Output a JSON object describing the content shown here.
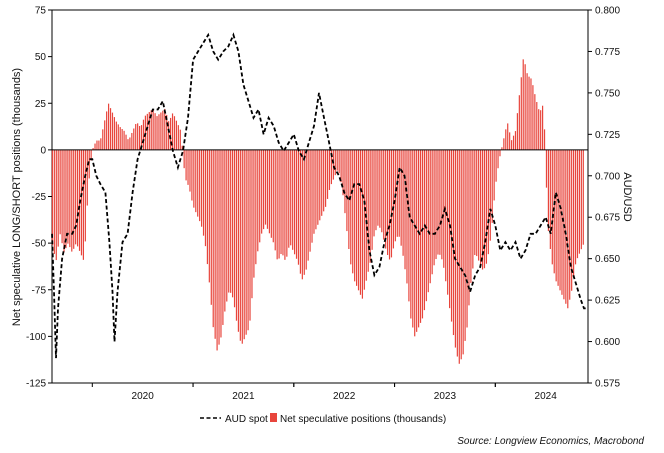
{
  "chart_data": {
    "type": "bar",
    "x_ticks": [
      "2020",
      "2021",
      "2022",
      "2023",
      "2024"
    ],
    "y_left": {
      "label": "Net speculative LONG/SHORT positions (thousands)",
      "range": [
        -125,
        75
      ],
      "ticks": [
        75,
        50,
        25,
        0,
        -25,
        -50,
        -75,
        -100,
        -125
      ]
    },
    "y_right": {
      "label": "AUD/USD",
      "range": [
        0.575,
        0.8
      ],
      "ticks": [
        "0.800",
        "0.775",
        "0.750",
        "0.725",
        "0.700",
        "0.675",
        "0.650",
        "0.625",
        "0.600",
        "0.575"
      ]
    },
    "x_range": [
      2019.6,
      2024.92
    ],
    "grid": false,
    "legend_position": "bottom",
    "source": "Source: Longview Economics, Macrobond",
    "series": [
      {
        "name": "AUD spot",
        "axis": "right",
        "style": "dashed-line",
        "color": "#111111",
        "points": [
          [
            2019.6,
            0.665
          ],
          [
            2019.62,
            0.63
          ],
          [
            2019.64,
            0.59
          ],
          [
            2019.66,
            0.62
          ],
          [
            2019.7,
            0.65
          ],
          [
            2019.75,
            0.665
          ],
          [
            2019.8,
            0.665
          ],
          [
            2019.84,
            0.67
          ],
          [
            2019.88,
            0.685
          ],
          [
            2019.93,
            0.7
          ],
          [
            2019.97,
            0.71
          ],
          [
            2020.0,
            0.71
          ],
          [
            2020.04,
            0.7
          ],
          [
            2020.08,
            0.695
          ],
          [
            2020.13,
            0.69
          ],
          [
            2020.17,
            0.66
          ],
          [
            2020.2,
            0.63
          ],
          [
            2020.22,
            0.6
          ],
          [
            2020.25,
            0.63
          ],
          [
            2020.3,
            0.66
          ],
          [
            2020.35,
            0.665
          ],
          [
            2020.4,
            0.69
          ],
          [
            2020.45,
            0.71
          ],
          [
            2020.5,
            0.72
          ],
          [
            2020.55,
            0.73
          ],
          [
            2020.6,
            0.74
          ],
          [
            2020.65,
            0.74
          ],
          [
            2020.7,
            0.745
          ],
          [
            2020.75,
            0.73
          ],
          [
            2020.8,
            0.715
          ],
          [
            2020.85,
            0.705
          ],
          [
            2020.9,
            0.715
          ],
          [
            2020.95,
            0.735
          ],
          [
            2021.0,
            0.77
          ],
          [
            2021.05,
            0.775
          ],
          [
            2021.1,
            0.78
          ],
          [
            2021.15,
            0.785
          ],
          [
            2021.2,
            0.775
          ],
          [
            2021.25,
            0.77
          ],
          [
            2021.3,
            0.775
          ],
          [
            2021.35,
            0.778
          ],
          [
            2021.4,
            0.785
          ],
          [
            2021.45,
            0.775
          ],
          [
            2021.5,
            0.755
          ],
          [
            2021.55,
            0.745
          ],
          [
            2021.6,
            0.735
          ],
          [
            2021.65,
            0.74
          ],
          [
            2021.7,
            0.725
          ],
          [
            2021.75,
            0.735
          ],
          [
            2021.8,
            0.73
          ],
          [
            2021.85,
            0.72
          ],
          [
            2021.9,
            0.715
          ],
          [
            2021.95,
            0.72
          ],
          [
            2022.0,
            0.725
          ],
          [
            2022.05,
            0.715
          ],
          [
            2022.1,
            0.71
          ],
          [
            2022.15,
            0.72
          ],
          [
            2022.2,
            0.73
          ],
          [
            2022.25,
            0.75
          ],
          [
            2022.3,
            0.735
          ],
          [
            2022.35,
            0.72
          ],
          [
            2022.4,
            0.705
          ],
          [
            2022.45,
            0.7
          ],
          [
            2022.5,
            0.69
          ],
          [
            2022.55,
            0.685
          ],
          [
            2022.6,
            0.695
          ],
          [
            2022.65,
            0.695
          ],
          [
            2022.7,
            0.685
          ],
          [
            2022.75,
            0.655
          ],
          [
            2022.8,
            0.64
          ],
          [
            2022.85,
            0.645
          ],
          [
            2022.9,
            0.66
          ],
          [
            2022.95,
            0.67
          ],
          [
            2023.0,
            0.685
          ],
          [
            2023.05,
            0.705
          ],
          [
            2023.1,
            0.7
          ],
          [
            2023.15,
            0.675
          ],
          [
            2023.2,
            0.67
          ],
          [
            2023.25,
            0.665
          ],
          [
            2023.3,
            0.67
          ],
          [
            2023.35,
            0.665
          ],
          [
            2023.4,
            0.665
          ],
          [
            2023.45,
            0.67
          ],
          [
            2023.5,
            0.68
          ],
          [
            2023.55,
            0.67
          ],
          [
            2023.6,
            0.65
          ],
          [
            2023.65,
            0.645
          ],
          [
            2023.7,
            0.64
          ],
          [
            2023.75,
            0.63
          ],
          [
            2023.8,
            0.64
          ],
          [
            2023.85,
            0.645
          ],
          [
            2023.9,
            0.66
          ],
          [
            2023.95,
            0.68
          ],
          [
            2024.0,
            0.67
          ],
          [
            2024.05,
            0.655
          ],
          [
            2024.1,
            0.66
          ],
          [
            2024.15,
            0.655
          ],
          [
            2024.2,
            0.66
          ],
          [
            2024.25,
            0.65
          ],
          [
            2024.3,
            0.655
          ],
          [
            2024.35,
            0.665
          ],
          [
            2024.4,
            0.665
          ],
          [
            2024.45,
            0.67
          ],
          [
            2024.5,
            0.675
          ],
          [
            2024.55,
            0.665
          ],
          [
            2024.6,
            0.69
          ],
          [
            2024.65,
            0.68
          ],
          [
            2024.7,
            0.665
          ],
          [
            2024.75,
            0.645
          ],
          [
            2024.8,
            0.635
          ],
          [
            2024.85,
            0.625
          ],
          [
            2024.88,
            0.62
          ],
          [
            2024.92,
            0.62
          ]
        ]
      },
      {
        "name": "Net speculative positions (thousands)",
        "axis": "left",
        "style": "bars",
        "color": "#e8453c",
        "points": [
          [
            2019.6,
            -50
          ],
          [
            2019.64,
            -60
          ],
          [
            2019.68,
            -45
          ],
          [
            2019.72,
            -55
          ],
          [
            2019.76,
            -50
          ],
          [
            2019.8,
            -55
          ],
          [
            2019.84,
            -50
          ],
          [
            2019.88,
            -55
          ],
          [
            2019.92,
            -60
          ],
          [
            2019.96,
            -20
          ],
          [
            2020.0,
            0
          ],
          [
            2020.04,
            5
          ],
          [
            2020.08,
            5
          ],
          [
            2020.12,
            15
          ],
          [
            2020.16,
            25
          ],
          [
            2020.2,
            20
          ],
          [
            2020.24,
            15
          ],
          [
            2020.28,
            12
          ],
          [
            2020.32,
            10
          ],
          [
            2020.36,
            5
          ],
          [
            2020.4,
            10
          ],
          [
            2020.44,
            15
          ],
          [
            2020.48,
            12
          ],
          [
            2020.52,
            18
          ],
          [
            2020.56,
            20
          ],
          [
            2020.6,
            22
          ],
          [
            2020.64,
            18
          ],
          [
            2020.68,
            20
          ],
          [
            2020.72,
            22
          ],
          [
            2020.76,
            15
          ],
          [
            2020.8,
            20
          ],
          [
            2020.84,
            15
          ],
          [
            2020.88,
            10
          ],
          [
            2020.92,
            -15
          ],
          [
            2020.96,
            -20
          ],
          [
            2021.0,
            -30
          ],
          [
            2021.04,
            -35
          ],
          [
            2021.08,
            -40
          ],
          [
            2021.12,
            -50
          ],
          [
            2021.16,
            -70
          ],
          [
            2021.2,
            -95
          ],
          [
            2021.24,
            -108
          ],
          [
            2021.28,
            -100
          ],
          [
            2021.32,
            -85
          ],
          [
            2021.36,
            -75
          ],
          [
            2021.4,
            -80
          ],
          [
            2021.44,
            -95
          ],
          [
            2021.48,
            -105
          ],
          [
            2021.52,
            -100
          ],
          [
            2021.56,
            -95
          ],
          [
            2021.6,
            -70
          ],
          [
            2021.64,
            -55
          ],
          [
            2021.68,
            -45
          ],
          [
            2021.72,
            -40
          ],
          [
            2021.76,
            -45
          ],
          [
            2021.8,
            -50
          ],
          [
            2021.84,
            -60
          ],
          [
            2021.88,
            -55
          ],
          [
            2021.92,
            -60
          ],
          [
            2021.96,
            -50
          ],
          [
            2022.0,
            -55
          ],
          [
            2022.04,
            -60
          ],
          [
            2022.08,
            -70
          ],
          [
            2022.12,
            -65
          ],
          [
            2022.16,
            -55
          ],
          [
            2022.2,
            -45
          ],
          [
            2022.24,
            -40
          ],
          [
            2022.28,
            -35
          ],
          [
            2022.32,
            -30
          ],
          [
            2022.36,
            -20
          ],
          [
            2022.4,
            -15
          ],
          [
            2022.44,
            -10
          ],
          [
            2022.48,
            -20
          ],
          [
            2022.52,
            -40
          ],
          [
            2022.56,
            -60
          ],
          [
            2022.6,
            -70
          ],
          [
            2022.64,
            -75
          ],
          [
            2022.68,
            -80
          ],
          [
            2022.72,
            -70
          ],
          [
            2022.76,
            -60
          ],
          [
            2022.8,
            -45
          ],
          [
            2022.84,
            -40
          ],
          [
            2022.88,
            -45
          ],
          [
            2022.92,
            -55
          ],
          [
            2022.96,
            -60
          ],
          [
            2023.0,
            -50
          ],
          [
            2023.04,
            -45
          ],
          [
            2023.08,
            -55
          ],
          [
            2023.12,
            -70
          ],
          [
            2023.16,
            -90
          ],
          [
            2023.2,
            -100
          ],
          [
            2023.24,
            -95
          ],
          [
            2023.28,
            -90
          ],
          [
            2023.32,
            -80
          ],
          [
            2023.36,
            -70
          ],
          [
            2023.4,
            -60
          ],
          [
            2023.44,
            -55
          ],
          [
            2023.48,
            -60
          ],
          [
            2023.52,
            -75
          ],
          [
            2023.56,
            -90
          ],
          [
            2023.6,
            -105
          ],
          [
            2023.64,
            -115
          ],
          [
            2023.68,
            -110
          ],
          [
            2023.72,
            -95
          ],
          [
            2023.76,
            -70
          ],
          [
            2023.8,
            -55
          ],
          [
            2023.84,
            -60
          ],
          [
            2023.88,
            -65
          ],
          [
            2023.92,
            -60
          ],
          [
            2023.96,
            -45
          ],
          [
            2024.0,
            -20
          ],
          [
            2024.04,
            -5
          ],
          [
            2024.08,
            5
          ],
          [
            2024.12,
            15
          ],
          [
            2024.16,
            5
          ],
          [
            2024.2,
            10
          ],
          [
            2024.24,
            30
          ],
          [
            2024.28,
            50
          ],
          [
            2024.32,
            40
          ],
          [
            2024.36,
            38
          ],
          [
            2024.4,
            28
          ],
          [
            2024.44,
            20
          ],
          [
            2024.48,
            25
          ],
          [
            2024.52,
            -40
          ],
          [
            2024.56,
            -60
          ],
          [
            2024.6,
            -70
          ],
          [
            2024.64,
            -75
          ],
          [
            2024.68,
            -80
          ],
          [
            2024.72,
            -85
          ],
          [
            2024.76,
            -75
          ],
          [
            2024.8,
            -60
          ],
          [
            2024.84,
            -55
          ],
          [
            2024.88,
            -50
          ]
        ]
      }
    ]
  }
}
